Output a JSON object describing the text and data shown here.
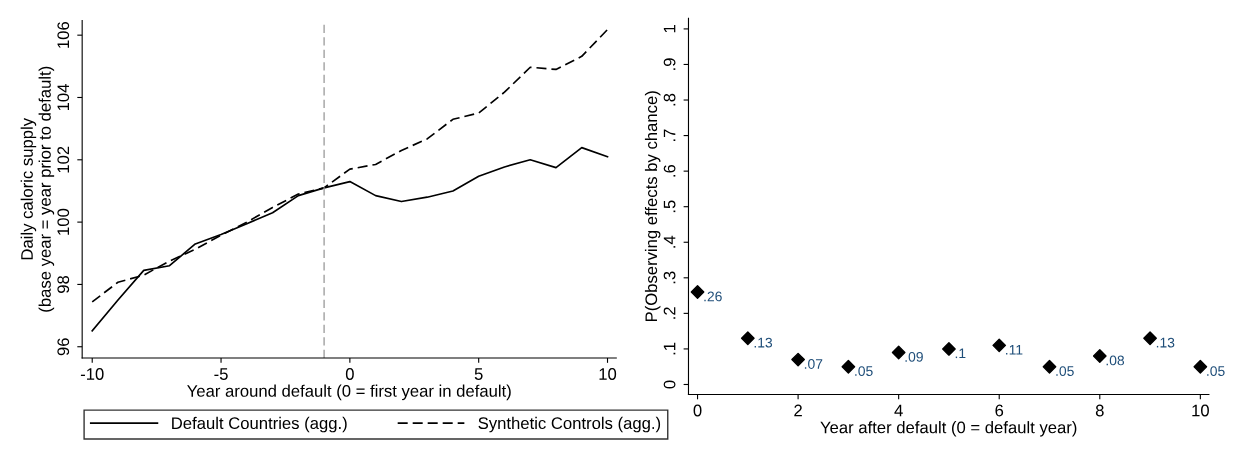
{
  "chart_data": [
    {
      "type": "line",
      "xlabel": "Year around default (0 = first year in default)",
      "ylabel": "Daily caloric supply\n(base year = year prior to default)",
      "x": [
        -10,
        -9,
        -8,
        -7,
        -6,
        -5,
        -4,
        -3,
        -2,
        -1,
        0,
        1,
        2,
        3,
        4,
        5,
        6,
        7,
        8,
        9,
        10
      ],
      "series": [
        {
          "name": "Default Countries (agg.)",
          "color": "#000000",
          "line_style": "solid",
          "values": [
            96.51,
            97.5,
            98.45,
            98.6,
            99.3,
            99.6,
            99.95,
            100.3,
            100.85,
            101.1,
            101.3,
            100.85,
            100.66,
            100.8,
            101.0,
            101.47,
            101.77,
            102.0,
            101.75,
            102.39,
            102.1
          ]
        },
        {
          "name": "Synthetic Controls (agg.)",
          "color": "#000000",
          "line_style": "dashed",
          "values": [
            97.44,
            98.07,
            98.3,
            98.75,
            99.13,
            99.58,
            100.0,
            100.47,
            100.9,
            101.1,
            101.7,
            101.85,
            102.3,
            102.67,
            103.3,
            103.5,
            104.17,
            104.97,
            104.9,
            105.32,
            106.18
          ]
        }
      ],
      "xlim": [
        -10.39,
        10.34
      ],
      "ylim": [
        95.64,
        106.47
      ],
      "xticks": [
        {
          "value": -10,
          "label": "-10"
        },
        {
          "value": -5,
          "label": "-5"
        },
        0,
        5,
        10
      ],
      "yticks": [
        96,
        98,
        100,
        102,
        104,
        106
      ],
      "ref_lines": [
        {
          "axis": "x",
          "value": -1,
          "color": "#a0a0a0",
          "line_style": "dashed"
        }
      ],
      "legend": "bottom",
      "grid": false,
      "marker": "none"
    },
    {
      "type": "scatter",
      "xlabel": "Year after default (0 = default year)",
      "ylabel": "P(Observing effects by chance)",
      "x": [
        0,
        1,
        2,
        3,
        4,
        5,
        6,
        7,
        8,
        9,
        10
      ],
      "series": [
        {
          "color": "#000000",
          "values": [
            0.26,
            0.13,
            0.07,
            0.05,
            0.09,
            0.1,
            0.11,
            0.05,
            0.08,
            0.13,
            0.05
          ],
          "value_labels": [
            ".26",
            ".13",
            ".07",
            ".05",
            ".09",
            ".1",
            ".11",
            ".05",
            ".08",
            ".13",
            ".05"
          ]
        }
      ],
      "xlim": [
        -0.18,
        10.17
      ],
      "ylim": [
        -0.028,
        1.03
      ],
      "xticks": [
        0,
        2,
        4,
        6,
        8,
        10
      ],
      "yticks": [
        0,
        {
          "value": 0.1,
          "label": ".1"
        },
        {
          "value": 0.2,
          "label": ".2"
        },
        {
          "value": 0.3,
          "label": ".3"
        },
        {
          "value": 0.4,
          "label": ".4"
        },
        {
          "value": 0.5,
          "label": ".5"
        },
        {
          "value": 0.6,
          "label": ".6"
        },
        {
          "value": 0.7,
          "label": ".7"
        },
        {
          "value": 0.8,
          "label": ".8"
        },
        {
          "value": 0.9,
          "label": ".9"
        },
        1
      ],
      "legend": false,
      "grid": false,
      "marker": "diamond"
    }
  ]
}
